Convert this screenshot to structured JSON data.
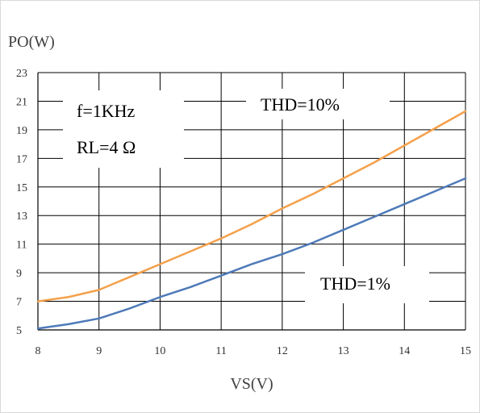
{
  "chart_data": {
    "type": "line",
    "xlabel": "VS(V)",
    "ylabel": "PO(W)",
    "xlim": [
      8,
      15
    ],
    "ylim": [
      5,
      23
    ],
    "x_ticks": [
      "8",
      "9",
      "10",
      "11",
      "12",
      "13",
      "14",
      "15"
    ],
    "y_ticks": [
      "5",
      "7",
      "9",
      "11",
      "13",
      "15",
      "17",
      "19",
      "21",
      "23"
    ],
    "grid": true,
    "legend": "none",
    "annotations": {
      "condition_freq": "f=1KHz",
      "condition_load": "RL=4 Ω",
      "thd10_label": "THD=10%",
      "thd1_label": "THD=1%"
    },
    "series": [
      {
        "name": "THD=10%",
        "color": "#F4A04B",
        "x": [
          8,
          8.5,
          9,
          9.5,
          10,
          10.5,
          11,
          11.5,
          12,
          12.5,
          13,
          13.5,
          14,
          14.5,
          15
        ],
        "y": [
          7.0,
          7.3,
          7.8,
          8.7,
          9.6,
          10.5,
          11.4,
          12.4,
          13.5,
          14.5,
          15.6,
          16.7,
          17.9,
          19.1,
          20.3
        ]
      },
      {
        "name": "THD=1%",
        "color": "#4E7AB8",
        "x": [
          8,
          8.5,
          9,
          9.5,
          10,
          10.5,
          11,
          11.5,
          12,
          12.5,
          13,
          13.5,
          14,
          14.5,
          15
        ],
        "y": [
          5.1,
          5.4,
          5.8,
          6.5,
          7.3,
          8.0,
          8.8,
          9.6,
          10.3,
          11.1,
          12.0,
          12.9,
          13.8,
          14.7,
          15.6
        ]
      }
    ]
  }
}
